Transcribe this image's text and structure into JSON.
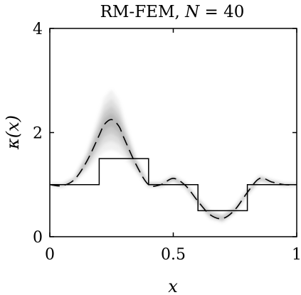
{
  "chart_data": {
    "type": "line",
    "title": {
      "prefix": "RM-FEM, ",
      "symbol": "N",
      "suffix": " = 40"
    },
    "xlabel": "x",
    "ylabel": {
      "symbol": "κ",
      "arg": "(x)"
    },
    "xlim": [
      0,
      1
    ],
    "ylim": [
      0,
      4
    ],
    "xticks": [
      0,
      0.5,
      1
    ],
    "xtick_labels": [
      "0",
      "0.5",
      "1"
    ],
    "yticks": [
      0,
      2,
      4
    ],
    "ytick_labels": [
      "0",
      "2",
      "4"
    ],
    "grid": false,
    "legend": "none",
    "series": [
      {
        "style": "solid-step",
        "color": "#000000",
        "x": [
          0,
          0.2,
          0.2,
          0.4,
          0.4,
          0.6,
          0.6,
          0.8,
          0.8,
          1
        ],
        "y": [
          1,
          1,
          1.5,
          1.5,
          1,
          1,
          0.5,
          0.5,
          1,
          1
        ]
      },
      {
        "style": "dashed",
        "color": "#000000",
        "x": [
          0,
          0.05,
          0.1,
          0.15,
          0.2,
          0.22,
          0.25,
          0.28,
          0.3,
          0.35,
          0.4,
          0.45,
          0.5,
          0.55,
          0.6,
          0.65,
          0.7,
          0.75,
          0.8,
          0.85,
          0.9,
          0.95,
          1
        ],
        "y": [
          1.0,
          0.98,
          1.1,
          1.45,
          1.95,
          2.15,
          2.25,
          2.12,
          1.9,
          1.38,
          1.0,
          1.0,
          1.12,
          0.98,
          0.68,
          0.42,
          0.35,
          0.52,
          0.85,
          1.12,
          1.05,
          1.0,
          1.0
        ]
      }
    ],
    "uncertainty_band": {
      "color": "#808080",
      "x": [
        0,
        0.05,
        0.1,
        0.15,
        0.2,
        0.22,
        0.25,
        0.28,
        0.3,
        0.35,
        0.4,
        0.45,
        0.5,
        0.55,
        0.6,
        0.65,
        0.7,
        0.75,
        0.8,
        0.85,
        0.9,
        0.95,
        1
      ],
      "halfwidth": [
        0.02,
        0.03,
        0.05,
        0.18,
        0.4,
        0.52,
        0.58,
        0.5,
        0.38,
        0.14,
        0.05,
        0.05,
        0.06,
        0.06,
        0.07,
        0.08,
        0.08,
        0.07,
        0.06,
        0.06,
        0.04,
        0.03,
        0.02
      ]
    }
  }
}
